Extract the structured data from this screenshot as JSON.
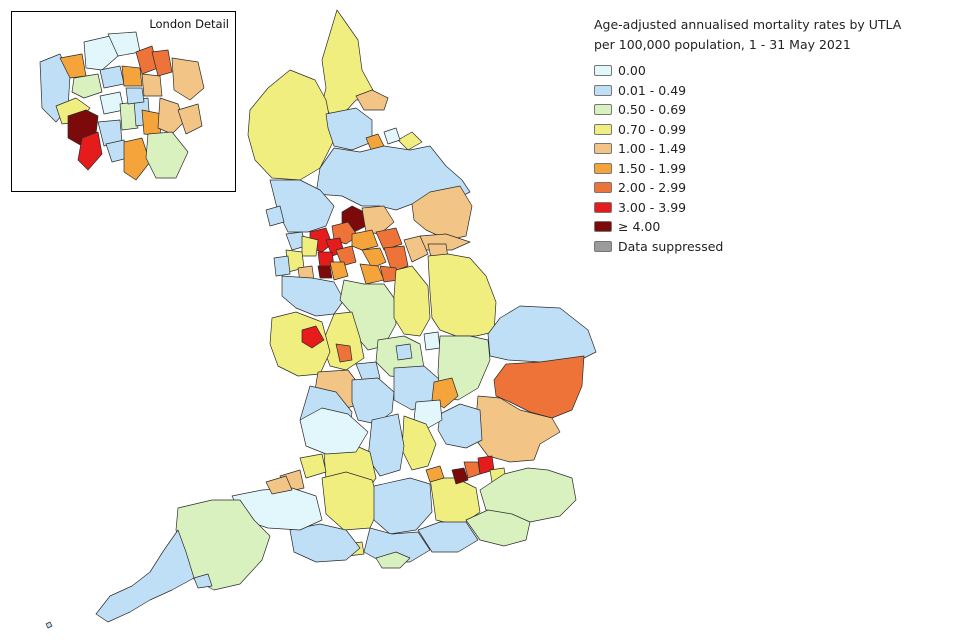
{
  "legend": {
    "title_line1": "Age-adjusted annualised mortality rates by UTLA",
    "title_line2": "per 100,000 population, 1 - 31 May 2021",
    "items": [
      {
        "label": "0.00",
        "color": "#e1f7fb"
      },
      {
        "label": "0.01 - 0.49",
        "color": "#bfdff6"
      },
      {
        "label": "0.50 - 0.69",
        "color": "#d8f1bf"
      },
      {
        "label": "0.70 - 0.99",
        "color": "#f1ee80"
      },
      {
        "label": "1.00 - 1.49",
        "color": "#f2c485"
      },
      {
        "label": "1.50 - 1.99",
        "color": "#f4a43a"
      },
      {
        "label": "2.00 - 2.99",
        "color": "#ee7339"
      },
      {
        "label": "3.00 - 3.99",
        "color": "#e61b1b"
      },
      {
        "label": "≥ 4.00",
        "color": "#7d0a0a"
      },
      {
        "label": "Data suppressed",
        "color": "#9b9b9b"
      }
    ]
  },
  "inset": {
    "title": "London Detail"
  }
}
